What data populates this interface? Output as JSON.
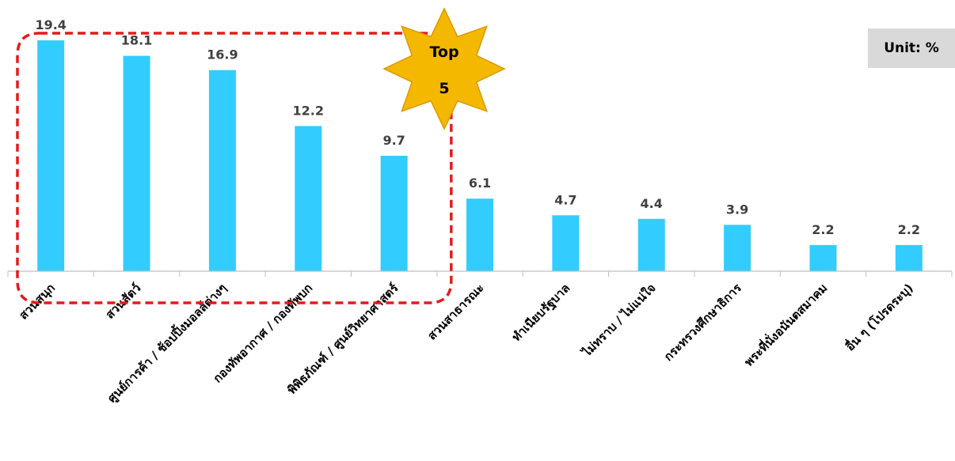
{
  "unit_label": "Unit: %",
  "badge": {
    "line1": "Top",
    "line2": "5"
  },
  "colors": {
    "bar": "#33ccff",
    "highlight_border": "#e31b1b",
    "badge_fill": "#f5b800",
    "axis": "#bfbfbf"
  },
  "chart_data": {
    "type": "bar",
    "categories": [
      "สวนสนุก",
      "สวนสัตว์",
      "ศูนย์การค้า / ช้อปปิ้งมอลล์ต่างๆ",
      "กองทัพอากาศ / กองทัพบก",
      "พิพิธภัณฑ์ / ศูนย์วิทยาศาสตร์",
      "สวนสาธารณะ",
      "ทำเนียบรัฐบาล",
      "ไม่ทราบ / ไม่แน่ใจ",
      "กระทรวงศึกษาธิการ",
      "พระที่นั่งอนันตสมาคม",
      "อื่น ๆ (โปรดระบุ)"
    ],
    "values": [
      19.4,
      18.1,
      16.9,
      12.2,
      9.7,
      6.1,
      4.7,
      4.4,
      3.9,
      2.2,
      2.2
    ],
    "data_labels": [
      "19.4",
      "18.1",
      "16.9",
      "12.2",
      "9.7",
      "6.1",
      "4.7",
      "4.4",
      "3.9",
      "2.2",
      "2.2"
    ],
    "ylim": [
      0,
      20
    ],
    "grid": false,
    "legend": "none",
    "highlight_top_n": 5
  }
}
